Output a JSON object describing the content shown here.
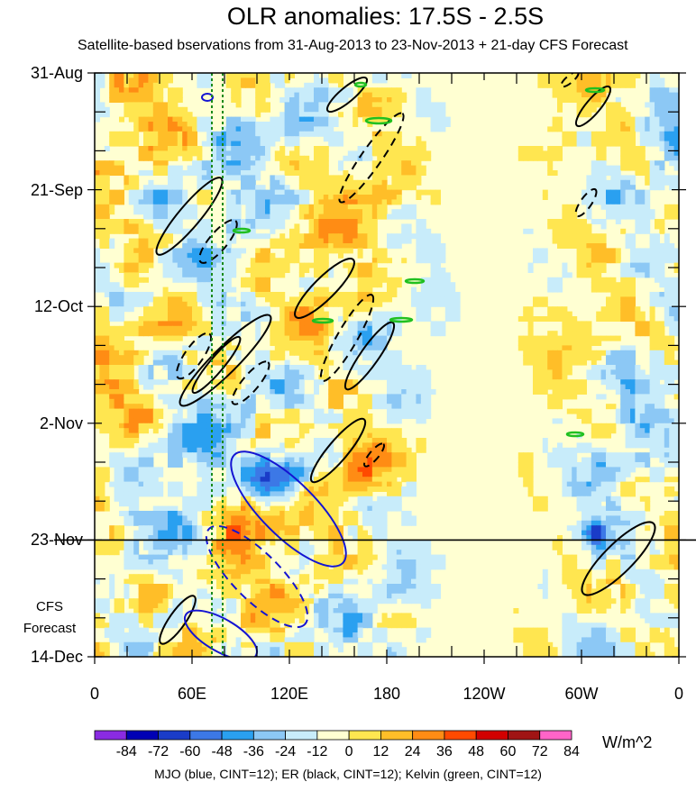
{
  "chart_data": {
    "type": "heatmap",
    "title": "OLR anomalies: 17.5S - 2.5S",
    "subtitle": "Satellite-based bservations from 31-Aug-2013 to 23-Nov-2013 + 21-day CFS Forecast",
    "y_ticks": [
      "31-Aug",
      "21-Sep",
      "12-Oct",
      "2-Nov",
      "23-Nov",
      "14-Dec"
    ],
    "x_ticks": [
      "0",
      "60E",
      "120E",
      "180",
      "120W",
      "60W",
      "0"
    ],
    "x_range_deg": [
      0,
      360
    ],
    "forecast_label_line1": "CFS",
    "forecast_label_line2": "Forecast",
    "observation_end": "23-Nov",
    "colorbar": {
      "labels": [
        "-84",
        "-72",
        "-60",
        "-48",
        "-36",
        "-24",
        "-12",
        "0",
        "12",
        "24",
        "36",
        "48",
        "60",
        "72",
        "84"
      ],
      "colors": [
        "#8a2be2",
        "#0000b4",
        "#1a3cc8",
        "#3c78e6",
        "#2aa0f0",
        "#8cc8f5",
        "#c8ecfa",
        "#ffffd2",
        "#ffe650",
        "#ffbe28",
        "#ff8c14",
        "#ff4a00",
        "#d20000",
        "#a01414",
        "#ff64c8"
      ],
      "units": "W/m^2"
    },
    "legend": "MJO (blue, CINT=12); ER (black, CINT=12); Kelvin (green, CINT=12)"
  }
}
